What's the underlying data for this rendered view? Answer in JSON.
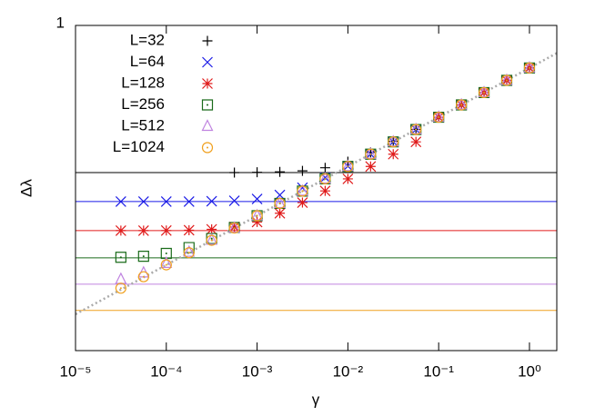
{
  "chart_data": {
    "type": "scatter",
    "xlabel": "γ",
    "ylabel": "Δλ",
    "xscale": "log",
    "yscale": "log",
    "xlim": [
      1e-05,
      2
    ],
    "ylim": [
      0.0005,
      1
    ],
    "xticks": [
      {
        "value": 1e-05,
        "label": "10⁻⁵"
      },
      {
        "value": 0.0001,
        "label": "10⁻⁴"
      },
      {
        "value": 0.001,
        "label": "10⁻³"
      },
      {
        "value": 0.01,
        "label": "10⁻²"
      },
      {
        "value": 0.1,
        "label": "10⁻¹"
      },
      {
        "value": 1,
        "label": "10⁰"
      }
    ],
    "yticks": [
      1
    ],
    "legend": "top-left",
    "x": [
      3.16e-05,
      5.62e-05,
      0.0001,
      0.000178,
      0.000316,
      0.000562,
      0.001,
      0.00178,
      0.00316,
      0.00562,
      0.01,
      0.0178,
      0.0316,
      0.0562,
      0.1,
      0.178,
      0.316,
      0.562,
      1
    ],
    "series": [
      {
        "name": "L=32",
        "color": "#000000",
        "marker": "plus",
        "plateau": 0.0321,
        "values": [
          null,
          null,
          null,
          null,
          null,
          0.0321,
          0.0323,
          0.0326,
          0.0334,
          0.0359,
          0.0414,
          0.0514,
          0.0667,
          0.0881,
          0.117,
          0.156,
          0.208,
          0.277,
          0.37
        ]
      },
      {
        "name": "L=64",
        "color": "#1a1ae6",
        "marker": "cross",
        "plateau": 0.0163,
        "values": [
          0.0163,
          0.0163,
          0.0163,
          0.0163,
          0.0164,
          0.0166,
          0.0173,
          0.019,
          0.0225,
          0.0285,
          0.0373,
          0.0494,
          0.0658,
          0.0877,
          0.117,
          0.156,
          0.208,
          0.277,
          0.37
        ]
      },
      {
        "name": "L=128",
        "color": "#e01a1a",
        "marker": "star",
        "plateau": 0.00826,
        "values": [
          0.00826,
          0.00826,
          0.00828,
          0.00834,
          0.00851,
          0.00899,
          0.0101,
          0.0124,
          0.0159,
          0.0209,
          0.0277,
          0.037,
          0.0493,
          0.0658,
          0.117,
          0.156,
          0.208,
          0.277,
          0.37
        ]
      },
      {
        "name": "L=256",
        "color": "#1a6b1a",
        "marker": "dotsquare",
        "plateau": 0.00437,
        "values": [
          0.00443,
          0.00454,
          0.00485,
          0.00556,
          0.00687,
          0.00889,
          0.0117,
          0.0156,
          0.0208,
          0.0277,
          0.037,
          0.0493,
          0.0658,
          0.0877,
          0.117,
          0.156,
          0.208,
          0.277,
          0.37
        ]
      },
      {
        "name": "L=512",
        "color": "#c084e0",
        "marker": "triangle",
        "plateau": 0.00236,
        "values": [
          0.00265,
          0.00308,
          0.00385,
          0.005,
          0.00661,
          0.00877,
          0.0117,
          0.0156,
          0.0208,
          0.0277,
          0.037,
          0.0493,
          0.0658,
          0.0877,
          0.117,
          0.156,
          0.208,
          0.277,
          0.37
        ]
      },
      {
        "name": "L=1024",
        "color": "#f0a01e",
        "marker": "dotcircle",
        "plateau": 0.00128,
        "values": [
          0.00215,
          0.00281,
          0.00371,
          0.00493,
          0.00658,
          0.00877,
          0.0117,
          0.0156,
          0.0208,
          0.0277,
          0.037,
          0.0493,
          0.0658,
          0.0877,
          0.117,
          0.156,
          0.208,
          0.277,
          0.37
        ]
      }
    ],
    "fit": {
      "coefficient": 0.37,
      "exponent": 0.5,
      "color": "#aaaaaa"
    }
  }
}
